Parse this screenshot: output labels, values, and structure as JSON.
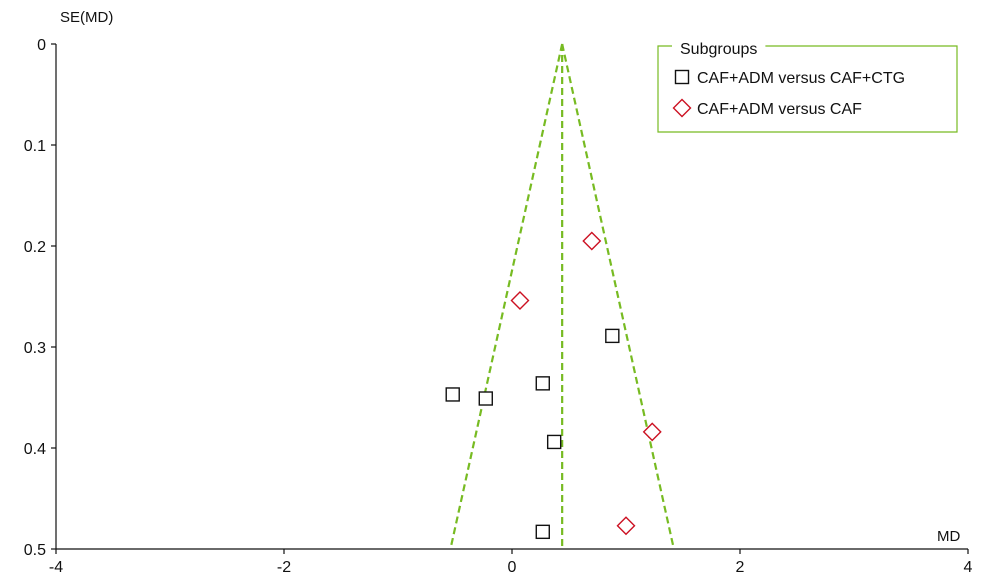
{
  "chart_data": {
    "type": "scatter",
    "subtype": "funnel plot",
    "xlabel": "MD",
    "ylabel": "SE(MD)",
    "xlim": [
      -4,
      4
    ],
    "ylim": [
      0,
      0.5
    ],
    "y_inverted": true,
    "x_ticks": [
      "-4",
      "-2",
      "0",
      "2",
      "4"
    ],
    "y_ticks": [
      "0",
      "0.1",
      "0.2",
      "0.3",
      "0.4",
      "0.5"
    ],
    "pooled_estimate": 0.44,
    "funnel_limits": {
      "se_max": 0.5,
      "left_x": -0.54,
      "right_x": 1.42
    },
    "legend": {
      "title": "Subgroups",
      "placement": "top-right",
      "items": [
        {
          "label": "CAF+ADM versus CAF+CTG",
          "marker": "square",
          "color": "#111111"
        },
        {
          "label": "CAF+ADM versus CAF",
          "marker": "diamond",
          "color": "#cc1122"
        }
      ]
    },
    "series": [
      {
        "name": "CAF+ADM versus CAF+CTG",
        "marker": "square",
        "color": "#111111",
        "points": [
          {
            "x": 0.88,
            "y": 0.289
          },
          {
            "x": 0.27,
            "y": 0.336
          },
          {
            "x": -0.52,
            "y": 0.347
          },
          {
            "x": -0.23,
            "y": 0.351
          },
          {
            "x": 0.37,
            "y": 0.394
          },
          {
            "x": 0.27,
            "y": 0.483
          }
        ]
      },
      {
        "name": "CAF+ADM versus CAF",
        "marker": "diamond",
        "color": "#cc1122",
        "points": [
          {
            "x": 0.7,
            "y": 0.195
          },
          {
            "x": 0.07,
            "y": 0.254
          },
          {
            "x": 1.23,
            "y": 0.384
          },
          {
            "x": 1.0,
            "y": 0.477
          }
        ]
      }
    ],
    "line_color": "#77bb22"
  }
}
